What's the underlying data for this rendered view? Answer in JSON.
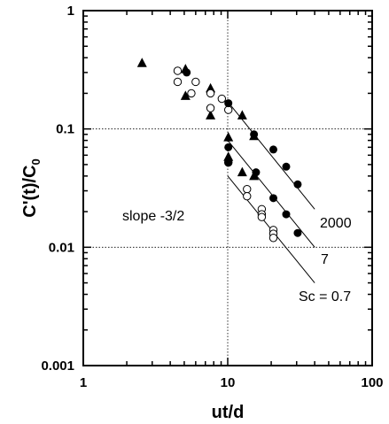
{
  "chart_data": {
    "type": "scatter",
    "title": "",
    "xlabel": "ut/d",
    "ylabel_main": "C'(t)/C",
    "ylabel_sub": "0",
    "xscale": "log",
    "yscale": "log",
    "xlim": [
      1,
      100
    ],
    "ylim": [
      0.001,
      1
    ],
    "x_ticks": [
      1,
      10,
      100
    ],
    "x_tick_labels": [
      "1",
      "10",
      "100"
    ],
    "y_ticks": [
      0.001,
      0.01,
      0.1,
      1
    ],
    "y_tick_labels": [
      "0.001",
      "0.01",
      "0.1",
      "1"
    ],
    "gridlines": {
      "x": [
        10
      ],
      "y": [
        0.01,
        0.1
      ],
      "style": "dotted"
    },
    "series": [
      {
        "marker": "filled-triangle",
        "points": [
          [
            2.55,
            0.36
          ],
          [
            5.1,
            0.32
          ],
          [
            5.1,
            0.19
          ],
          [
            7.6,
            0.22
          ],
          [
            7.6,
            0.13
          ],
          [
            10.1,
            0.085
          ],
          [
            12.6,
            0.13
          ],
          [
            15.2,
            0.087
          ],
          [
            10.1,
            0.058
          ],
          [
            12.6,
            0.043
          ],
          [
            15.2,
            0.04
          ]
        ]
      },
      {
        "marker": "open-circle",
        "points": [
          [
            4.5,
            0.31
          ],
          [
            4.5,
            0.25
          ],
          [
            5.6,
            0.2
          ],
          [
            6.0,
            0.25
          ],
          [
            7.6,
            0.2
          ],
          [
            7.6,
            0.15
          ],
          [
            9.1,
            0.18
          ],
          [
            10.1,
            0.145
          ],
          [
            10.1,
            0.052
          ],
          [
            13.6,
            0.031
          ],
          [
            13.6,
            0.027
          ],
          [
            17.2,
            0.021
          ],
          [
            17.2,
            0.019
          ],
          [
            17.2,
            0.018
          ],
          [
            20.7,
            0.014
          ],
          [
            20.7,
            0.013
          ],
          [
            20.7,
            0.012
          ]
        ]
      },
      {
        "marker": "filled-circle",
        "points": [
          [
            5.2,
            0.3
          ],
          [
            10.1,
            0.165
          ],
          [
            15.2,
            0.09
          ],
          [
            20.7,
            0.067
          ],
          [
            25.4,
            0.048
          ],
          [
            30.5,
            0.034
          ],
          [
            10.1,
            0.07
          ],
          [
            15.7,
            0.043
          ],
          [
            20.7,
            0.026
          ],
          [
            25.4,
            0.019
          ],
          [
            30.5,
            0.0132
          ],
          [
            10.1,
            0.052
          ]
        ]
      }
    ],
    "reference_lines": [
      {
        "label": "2000",
        "from": [
          10,
          0.17
        ],
        "to": [
          40,
          0.021
        ]
      },
      {
        "label": "7",
        "from": [
          10,
          0.08
        ],
        "to": [
          40,
          0.01
        ]
      },
      {
        "label": "Sc = 0.7",
        "from": [
          10,
          0.04
        ],
        "to": [
          40,
          0.005
        ]
      }
    ],
    "annotations": [
      "slope -3/2",
      "2000",
      "7",
      "Sc = 0.7"
    ]
  }
}
